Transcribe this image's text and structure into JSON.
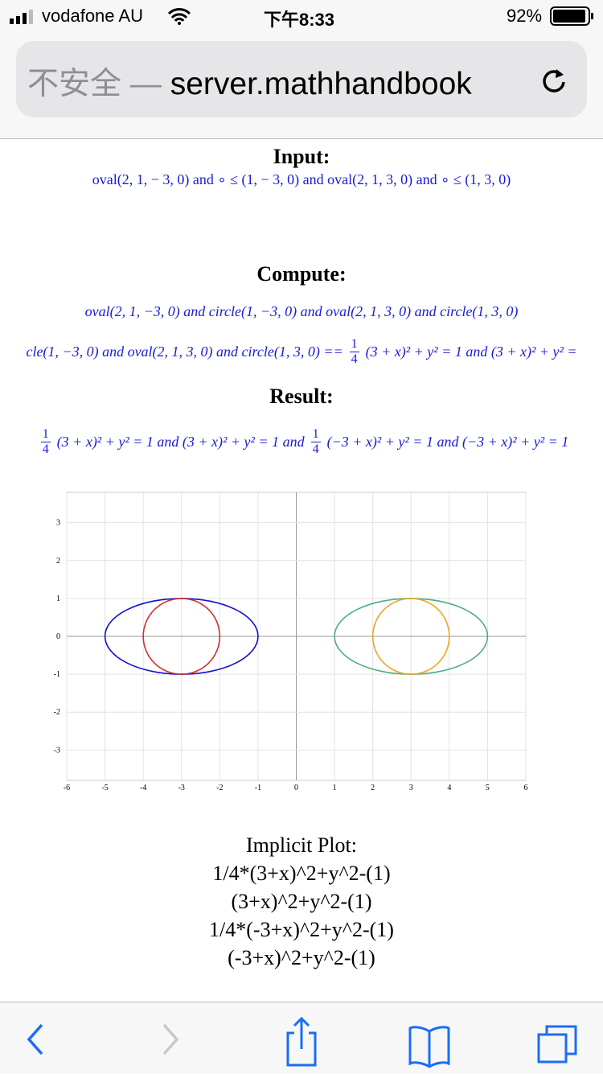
{
  "status_bar": {
    "carrier": "vodafone AU",
    "time": "下午8:33",
    "battery": "92%"
  },
  "address_bar": {
    "security": "不安全",
    "separator": "—",
    "domain": "server.mathhandbook"
  },
  "input": {
    "heading": "Input:",
    "expression": "oval(2, 1,  − 3, 0)  and  ∘ ≤ (1,  − 3, 0)  and  oval(2, 1, 3, 0)  and  ∘ ≤ (1, 3, 0)"
  },
  "compute": {
    "heading": "Compute:",
    "expression": "oval(2, 1, −3, 0) and circle(1, −3, 0) and oval(2, 1, 3, 0) and circle(1, 3, 0)",
    "expansion": [
      {
        "text": "cle(1, −3, 0) and oval(2, 1, 3, 0) and circle(1, 3, 0) =="
      },
      {
        "numerator": "1",
        "denominator": "4"
      },
      {
        "text": "(3 + x)² + y² = 1 and (3 + x)² + y² ="
      }
    ]
  },
  "result": {
    "heading": "Result:",
    "parts": [
      {
        "numerator": "1",
        "denominator": "4"
      },
      {
        "text": "(3 + x)² + y² = 1 and (3 + x)² + y² = 1 and"
      },
      {
        "numerator": "1",
        "denominator": "4"
      },
      {
        "text": "(−3 + x)² + y² = 1 and (−3 + x)² + y² = 1"
      }
    ]
  },
  "chart_data": {
    "type": "implicit",
    "title": "Implicit Plot:",
    "xlim": [
      -6,
      6
    ],
    "ylim": [
      -3.8,
      3.8
    ],
    "xticks": [
      -6,
      -5,
      -4,
      -3,
      -2,
      -1,
      0,
      1,
      2,
      3,
      4,
      5,
      6
    ],
    "yticks": [
      -3,
      -2,
      -1,
      0,
      1,
      2,
      3
    ],
    "grid": true,
    "series": [
      {
        "name": "1/4*(3+x)^2+y^2-(1)",
        "color": "#1010d0",
        "center": [
          -3,
          0
        ],
        "radii": [
          2,
          1
        ]
      },
      {
        "name": "(3+x)^2+y^2-(1)",
        "color": "#d03030",
        "center": [
          -3,
          0
        ],
        "radii": [
          1,
          1
        ]
      },
      {
        "name": "1/4*(-3+x)^2+y^2-(1)",
        "color": "#4cae80",
        "center": [
          3,
          0
        ],
        "radii": [
          2,
          1
        ]
      },
      {
        "name": "(-3+x)^2+y^2-(1)",
        "color": "#efa328",
        "center": [
          3,
          0
        ],
        "radii": [
          1,
          1
        ]
      }
    ]
  }
}
